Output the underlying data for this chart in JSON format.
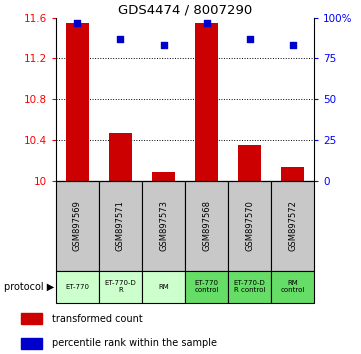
{
  "title": "GDS4474 / 8007290",
  "samples": [
    "GSM897569",
    "GSM897571",
    "GSM897573",
    "GSM897568",
    "GSM897570",
    "GSM897572"
  ],
  "bar_values": [
    11.55,
    10.47,
    10.08,
    11.55,
    10.35,
    10.13
  ],
  "percentile_values": [
    97,
    87,
    83,
    97,
    87,
    83
  ],
  "ylim_left": [
    10.0,
    11.6
  ],
  "ylim_right": [
    0,
    100
  ],
  "yticks_left": [
    10.0,
    10.4,
    10.8,
    11.2,
    11.6
  ],
  "ytick_labels_left": [
    "10",
    "10.4",
    "10.8",
    "11.2",
    "11.6"
  ],
  "yticks_right": [
    0,
    25,
    50,
    75,
    100
  ],
  "ytick_labels_right": [
    "0",
    "25",
    "50",
    "75",
    "100%"
  ],
  "bar_color": "#cc0000",
  "dot_color": "#0000cc",
  "protocol_labels": [
    "ET-770",
    "ET-770-D\nR",
    "RM",
    "ET-770\ncontrol",
    "ET-770-D\nR control",
    "RM\ncontrol"
  ],
  "protocol_colors_light": "#ccffcc",
  "protocol_colors_dark": "#66dd66",
  "sample_bg_color": "#c8c8c8",
  "legend_bar_label": "transformed count",
  "legend_dot_label": "percentile rank within the sample",
  "protocol_text": "protocol ▶"
}
